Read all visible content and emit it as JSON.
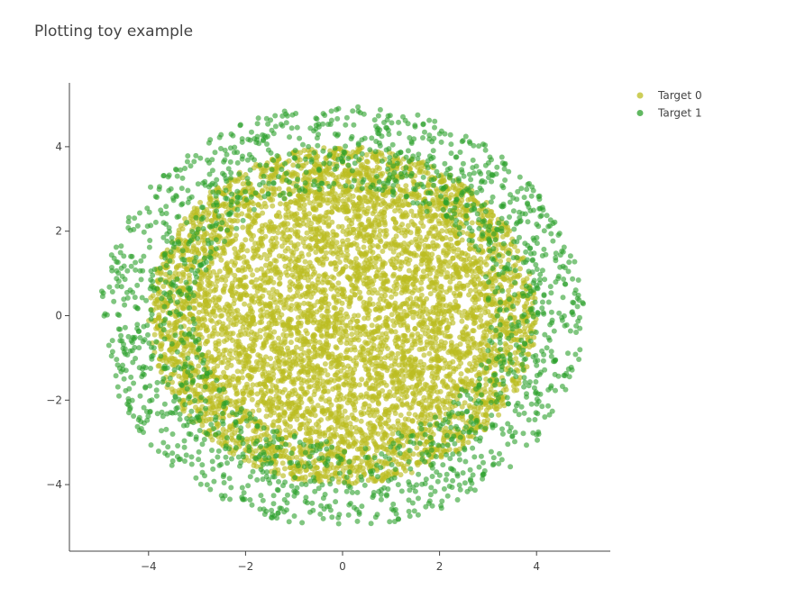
{
  "chart_data": {
    "type": "scatter",
    "title": "Plotting toy example",
    "xlabel": "",
    "ylabel": "",
    "xlim": [
      -5.6,
      5.6
    ],
    "ylim": [
      -5.6,
      5.6
    ],
    "x_ticks": [
      -4,
      -2,
      0,
      2,
      4
    ],
    "y_ticks": [
      -4,
      -2,
      0,
      2,
      4
    ],
    "x_tick_labels": [
      "−4",
      "−2",
      "0",
      "2",
      "4"
    ],
    "y_tick_labels": [
      "−4",
      "−2",
      "0",
      "2",
      "4"
    ],
    "grid": false,
    "legend_position": "top-right",
    "series": [
      {
        "name": "Target 0",
        "color": "#bcbd22",
        "distribution": "uniform disk",
        "radius_range": [
          0,
          4
        ],
        "point_count": 6000
      },
      {
        "name": "Target 1",
        "color": "#2ca02c",
        "distribution": "uniform annulus",
        "radius_range": [
          3,
          5
        ],
        "point_count": 1800
      }
    ]
  }
}
